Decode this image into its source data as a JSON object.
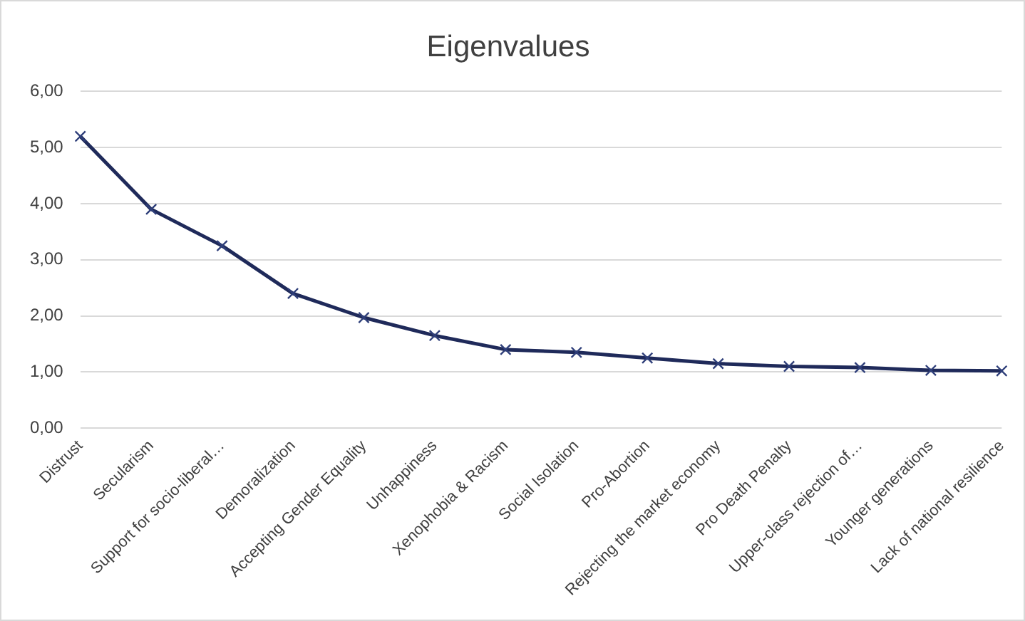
{
  "chart_data": {
    "type": "line",
    "title": "Eigenvalues",
    "categories": [
      "Distrust",
      "Secularism",
      "Support for socio-liberal…",
      "Demoralization",
      "Accepting Gender Equality",
      "Unhappiness",
      "Xenophobia & Racism",
      "Social Isolation",
      "Pro-Abortion",
      "Rejecting the market economy",
      "Pro Death Penalty",
      "Upper-class rejection of…",
      "Younger generations",
      "Lack of national resilience"
    ],
    "values": [
      5.2,
      3.9,
      3.25,
      2.4,
      1.97,
      1.65,
      1.4,
      1.35,
      1.25,
      1.15,
      1.1,
      1.08,
      1.03,
      1.02
    ],
    "color": "#1f2a5a",
    "ylim": [
      0,
      6
    ],
    "yticks": [
      {
        "value": 0,
        "label": "0,00"
      },
      {
        "value": 1,
        "label": "1,00"
      },
      {
        "value": 2,
        "label": "2,00"
      },
      {
        "value": 3,
        "label": "3,00"
      },
      {
        "value": 4,
        "label": "4,00"
      },
      {
        "value": 5,
        "label": "5,00"
      },
      {
        "value": 6,
        "label": "6,00"
      }
    ],
    "grid": "y",
    "legend": false,
    "marker": "cross",
    "line_style": "solid"
  }
}
